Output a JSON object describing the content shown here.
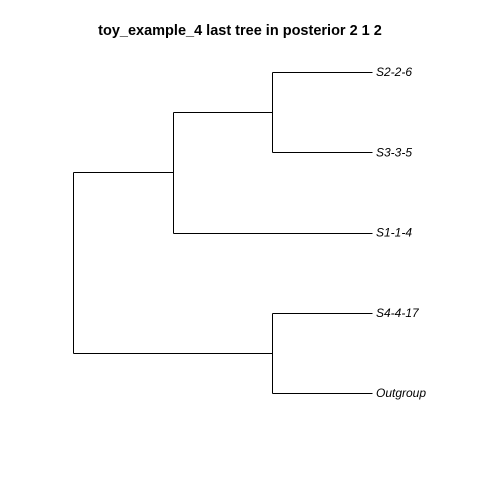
{
  "title": "toy_example_4 last tree in posterior 2 1 2",
  "tree": {
    "name": "",
    "children": [
      {
        "name": "",
        "children": [
          {
            "name": "",
            "children": [
              {
                "name": "S2-2-6"
              },
              {
                "name": "S3-3-5"
              }
            ]
          },
          {
            "name": "S1-1-4"
          }
        ]
      },
      {
        "name": "",
        "children": [
          {
            "name": "S4-4-17"
          },
          {
            "name": "Outgroup"
          }
        ]
      }
    ]
  },
  "colors": {
    "line": "#000000",
    "text": "#000000",
    "background": "#ffffff"
  }
}
